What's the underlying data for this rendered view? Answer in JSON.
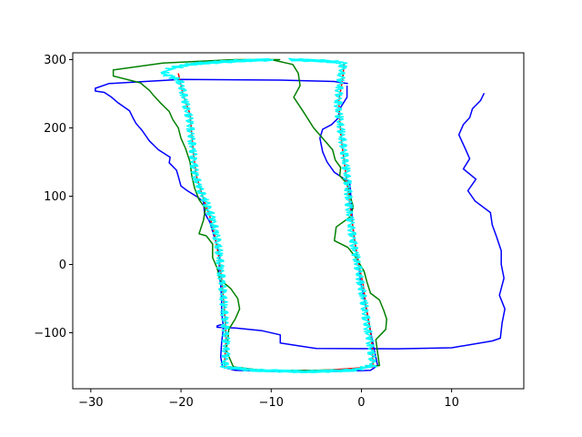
{
  "chart_data": {
    "type": "line",
    "title": "",
    "xlabel": "",
    "ylabel": "",
    "xlim": [
      -32,
      18
    ],
    "ylim": [
      -182,
      310
    ],
    "xticks": [
      -30,
      -20,
      -10,
      0,
      10
    ],
    "yticks": [
      -100,
      0,
      100,
      200,
      300
    ],
    "xtick_labels": [
      "−30",
      "−20",
      "−10",
      "0",
      "10"
    ],
    "ytick_labels": [
      "−100",
      "0",
      "100",
      "200",
      "300"
    ],
    "grid": false,
    "legend": "none",
    "series": [
      {
        "color": "#0000ff",
        "points": [
          [
            -1.5,
            265
          ],
          [
            -3,
            268
          ],
          [
            -9,
            270
          ],
          [
            -20,
            271
          ],
          [
            -28,
            265
          ],
          [
            -29.5,
            258
          ],
          [
            -29.5,
            254
          ],
          [
            -28.5,
            252
          ],
          [
            -27.7,
            245
          ],
          [
            -27,
            237
          ],
          [
            -25.7,
            225
          ],
          [
            -25.3,
            214
          ],
          [
            -25,
            207
          ],
          [
            -24.3,
            196
          ],
          [
            -23.5,
            181
          ],
          [
            -22.5,
            168
          ],
          [
            -21.2,
            157
          ],
          [
            -21.3,
            149
          ],
          [
            -20.5,
            138
          ],
          [
            -20.3,
            129
          ],
          [
            -20,
            115
          ],
          [
            -19.3,
            108
          ],
          [
            -18.2,
            99
          ],
          [
            -17.5,
            92
          ],
          [
            -17.4,
            76
          ],
          [
            -16.8,
            62
          ],
          [
            -16.4,
            44
          ],
          [
            -16,
            28
          ],
          [
            -15.7,
            10
          ],
          [
            -15.8,
            -10
          ],
          [
            -15.6,
            -30
          ],
          [
            -15.5,
            -50
          ],
          [
            -15.5,
            -70
          ],
          [
            -15.3,
            -92
          ],
          [
            -15.5,
            -115
          ],
          [
            -15.6,
            -135
          ],
          [
            -15.4,
            -150
          ],
          [
            -14,
            -155
          ],
          [
            -9,
            -157
          ],
          [
            -4,
            -157
          ],
          [
            1,
            -155
          ],
          [
            1.8,
            -148
          ],
          [
            1.5,
            -130
          ],
          [
            1.2,
            -110
          ],
          [
            0.9,
            -90
          ],
          [
            0.6,
            -70
          ],
          [
            0.3,
            -50
          ],
          [
            -0.1,
            -25
          ],
          [
            -0.3,
            0
          ],
          [
            -0.7,
            30
          ],
          [
            -1,
            60
          ],
          [
            -1.1,
            90
          ],
          [
            -1.3,
            120
          ],
          [
            -3,
            135
          ],
          [
            -3.8,
            150
          ],
          [
            -4.3,
            165
          ],
          [
            -4.6,
            185
          ],
          [
            -4.3,
            198
          ],
          [
            -3.3,
            205
          ],
          [
            -2.6,
            214
          ],
          [
            -2.4,
            228
          ],
          [
            -1.6,
            245
          ],
          [
            -1.6,
            262
          ]
        ]
      },
      {
        "color": "#0000ff",
        "points": [
          [
            13.6,
            251
          ],
          [
            13.2,
            240
          ],
          [
            12.3,
            228
          ],
          [
            12,
            215
          ],
          [
            11.3,
            205
          ],
          [
            10.8,
            190
          ],
          [
            11.5,
            170
          ],
          [
            12,
            155
          ],
          [
            11.3,
            140
          ],
          [
            12.7,
            125
          ],
          [
            11.8,
            108
          ],
          [
            12.6,
            93
          ],
          [
            14.3,
            76
          ],
          [
            14.5,
            58
          ],
          [
            15,
            40
          ],
          [
            15.5,
            20
          ],
          [
            15.5,
            0
          ],
          [
            15.8,
            -20
          ],
          [
            15.3,
            -45
          ],
          [
            15.9,
            -65
          ],
          [
            15.6,
            -85
          ],
          [
            15.4,
            -108
          ],
          [
            14.5,
            -112
          ],
          [
            10,
            -122
          ],
          [
            4,
            -123.5
          ],
          [
            -5,
            -123
          ],
          [
            -9,
            -115
          ],
          [
            -9,
            -103
          ],
          [
            -11,
            -97
          ],
          [
            -14,
            -93
          ],
          [
            -16,
            -92
          ],
          [
            -16,
            -90
          ],
          [
            -15.5,
            -88
          ]
        ]
      },
      {
        "color": "#008000",
        "points": [
          [
            -9,
            300
          ],
          [
            -14,
            300
          ],
          [
            -22,
            295
          ],
          [
            -27.5,
            285
          ],
          [
            -27.5,
            276
          ],
          [
            -24.5,
            266
          ],
          [
            -23.5,
            255
          ],
          [
            -23,
            247
          ],
          [
            -22.3,
            237
          ],
          [
            -21.3,
            224
          ],
          [
            -20.9,
            212
          ],
          [
            -20.3,
            200
          ],
          [
            -20,
            185
          ],
          [
            -19.5,
            170
          ],
          [
            -19,
            150
          ],
          [
            -18.8,
            130
          ],
          [
            -18.5,
            112
          ],
          [
            -18,
            95
          ],
          [
            -17.3,
            82
          ],
          [
            -17.5,
            65
          ],
          [
            -18,
            45
          ],
          [
            -17.2,
            42
          ],
          [
            -16.5,
            30
          ],
          [
            -16.5,
            10
          ],
          [
            -16,
            -5
          ],
          [
            -15.7,
            -22
          ],
          [
            -14.5,
            -35
          ],
          [
            -13.7,
            -50
          ],
          [
            -13.5,
            -65
          ],
          [
            -14,
            -80
          ],
          [
            -14.7,
            -95
          ],
          [
            -14.8,
            -110
          ],
          [
            -15,
            -125
          ],
          [
            -14.2,
            -150
          ],
          [
            -11,
            -155
          ],
          [
            -5,
            -155
          ],
          [
            -1,
            -153
          ],
          [
            2,
            -148
          ],
          [
            1.8,
            -130
          ],
          [
            1.6,
            -110
          ],
          [
            2.7,
            -95
          ],
          [
            2.8,
            -80
          ],
          [
            2.5,
            -68
          ],
          [
            2,
            -52
          ],
          [
            1,
            -42
          ],
          [
            0.6,
            -25
          ],
          [
            0.3,
            -10
          ],
          [
            -0.6,
            10
          ],
          [
            -1.5,
            25
          ],
          [
            -3,
            35
          ],
          [
            -2.8,
            55
          ],
          [
            -1.2,
            70
          ],
          [
            -0.9,
            85
          ],
          [
            -1.3,
            102
          ],
          [
            -1.5,
            117
          ],
          [
            -2.4,
            130
          ],
          [
            -2.3,
            142
          ],
          [
            -2.9,
            153
          ],
          [
            -3.2,
            168
          ],
          [
            -4.5,
            188
          ],
          [
            -5.3,
            200
          ],
          [
            -6.5,
            225
          ],
          [
            -7.5,
            245
          ],
          [
            -6.8,
            262
          ],
          [
            -7,
            280
          ],
          [
            -7.6,
            293
          ],
          [
            -10,
            300
          ]
        ]
      },
      {
        "color": "#ff0000",
        "points": [
          [
            -20.3,
            280
          ],
          [
            -19.8,
            250
          ],
          [
            -19,
            220
          ],
          [
            -18.8,
            190
          ],
          [
            -18.6,
            160
          ],
          [
            -18.3,
            130
          ],
          [
            -17.6,
            100
          ],
          [
            -16.8,
            70
          ],
          [
            -16.2,
            40
          ],
          [
            -15.8,
            10
          ],
          [
            -15.5,
            -20
          ],
          [
            -15.3,
            -50
          ],
          [
            -15.1,
            -80
          ],
          [
            -15,
            -110
          ],
          [
            -15.2,
            -150
          ],
          [
            -12,
            -155
          ],
          [
            -5,
            -156
          ],
          [
            1.3,
            -150
          ],
          [
            1.2,
            -120
          ],
          [
            0.9,
            -90
          ],
          [
            0.5,
            -60
          ],
          [
            0.2,
            -30
          ],
          [
            -0.3,
            0
          ],
          [
            -0.7,
            30
          ],
          [
            -1,
            60
          ],
          [
            -1.3,
            90
          ],
          [
            -1.6,
            120
          ],
          [
            -1.9,
            150
          ],
          [
            -2.2,
            180
          ],
          [
            -2.4,
            210
          ],
          [
            -2.5,
            240
          ],
          [
            -2.1,
            270
          ],
          [
            -1.9,
            296
          ]
        ]
      },
      {
        "color": "#00ffff",
        "jitter": true,
        "points": [
          [
            -10,
            300
          ],
          [
            -14,
            298
          ],
          [
            -18.5,
            294
          ],
          [
            -21,
            288
          ],
          [
            -22,
            280
          ],
          [
            -20.2,
            270
          ],
          [
            -19.7,
            250
          ],
          [
            -19.4,
            230
          ],
          [
            -19,
            210
          ],
          [
            -18.9,
            190
          ],
          [
            -18.7,
            170
          ],
          [
            -18.6,
            150
          ],
          [
            -18.4,
            130
          ],
          [
            -17.9,
            110
          ],
          [
            -17.2,
            90
          ],
          [
            -16.6,
            70
          ],
          [
            -16.2,
            50
          ],
          [
            -15.9,
            30
          ],
          [
            -15.7,
            10
          ],
          [
            -15.6,
            -10
          ],
          [
            -15.4,
            -30
          ],
          [
            -15.3,
            -50
          ],
          [
            -15.2,
            -70
          ],
          [
            -15.1,
            -90
          ],
          [
            -15,
            -110
          ],
          [
            -15,
            -130
          ],
          [
            -15.2,
            -150
          ],
          [
            -12,
            -155
          ],
          [
            -6,
            -157
          ],
          [
            -1,
            -155
          ],
          [
            1.3,
            -148
          ],
          [
            1.1,
            -128
          ],
          [
            0.9,
            -108
          ],
          [
            0.6,
            -88
          ],
          [
            0.4,
            -68
          ],
          [
            0.2,
            -48
          ],
          [
            -0.1,
            -28
          ],
          [
            -0.3,
            -8
          ],
          [
            -0.6,
            12
          ],
          [
            -0.9,
            32
          ],
          [
            -1.1,
            52
          ],
          [
            -1.3,
            72
          ],
          [
            -1.4,
            92
          ],
          [
            -1.5,
            112
          ],
          [
            -1.6,
            132
          ],
          [
            -1.8,
            152
          ],
          [
            -2,
            172
          ],
          [
            -2.2,
            192
          ],
          [
            -2.4,
            212
          ],
          [
            -2.6,
            232
          ],
          [
            -2.5,
            252
          ],
          [
            -2.3,
            272
          ],
          [
            -2,
            295
          ],
          [
            -4,
            298
          ],
          [
            -8,
            300
          ]
        ]
      }
    ]
  }
}
